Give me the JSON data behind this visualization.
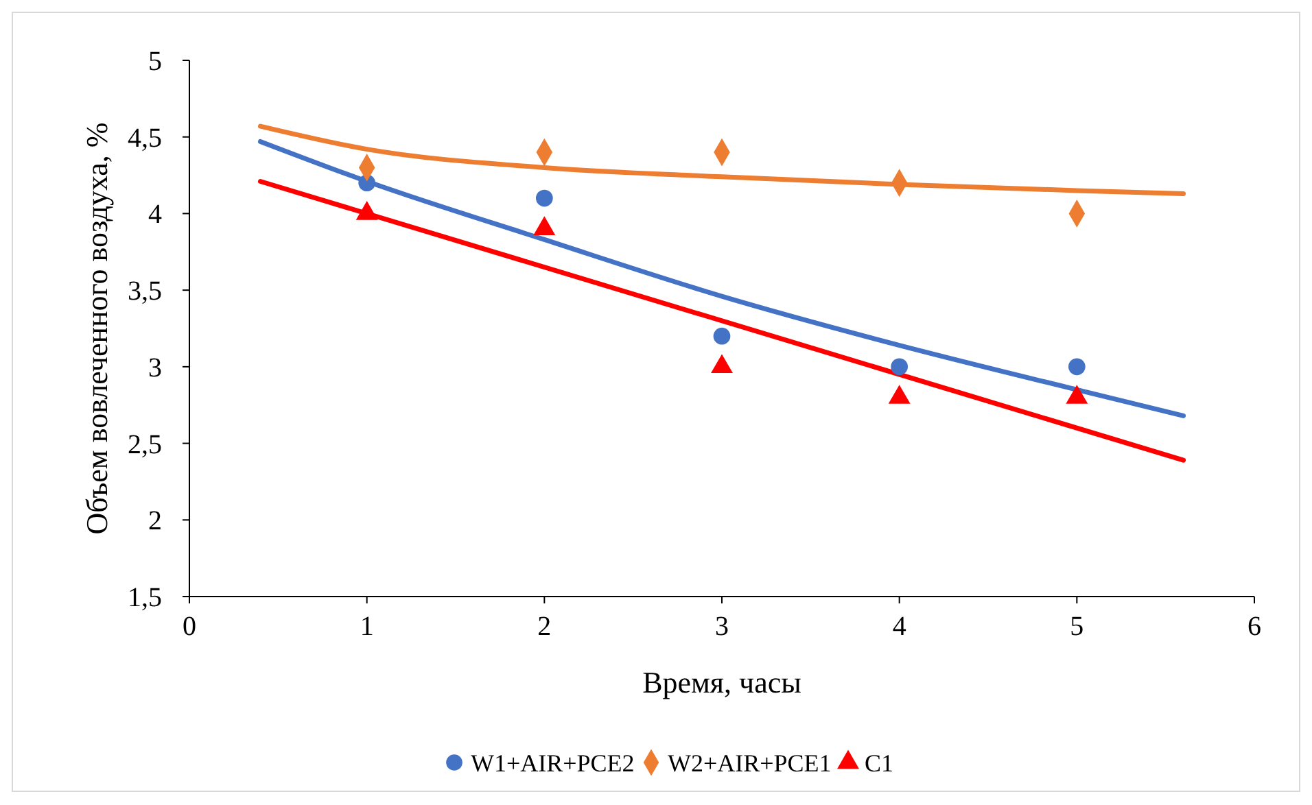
{
  "chart_data": {
    "type": "scatter",
    "xlabel": "Время, часы",
    "ylabel": "Объем вовлеченного  воздуха, %",
    "xlim": [
      0,
      6
    ],
    "xticks": [
      0,
      1,
      2,
      3,
      4,
      5,
      6
    ],
    "ylim": [
      1.5,
      5
    ],
    "yticks": [
      {
        "value": 1.5,
        "label": "1,5"
      },
      2,
      {
        "value": 2.5,
        "label": "2,5"
      },
      3,
      {
        "value": 3.5,
        "label": "3,5"
      },
      4,
      {
        "value": 4.5,
        "label": "4,5"
      },
      5
    ],
    "x": [
      1,
      2,
      3,
      4,
      5
    ],
    "grid": false,
    "legend": "bottom",
    "series": [
      {
        "name": "W1+AIR+PCE2",
        "color": "#4472c4",
        "marker": "circle",
        "values": [
          4.2,
          4.1,
          3.2,
          3.0,
          3.0
        ]
      },
      {
        "name": "W2+AIR+PCE1",
        "color": "#ed7d31",
        "marker": "diamond",
        "values": [
          4.3,
          4.4,
          4.4,
          4.2,
          4.0
        ]
      },
      {
        "name": "C1",
        "color": "#ff0000",
        "marker": "triangle",
        "values": [
          4.0,
          3.9,
          3.0,
          2.8,
          2.8
        ]
      },
      {
        "type": "line",
        "color": "#4472c4",
        "marker": "none",
        "x": [
          0.4,
          1,
          2,
          3,
          4,
          5,
          5.6
        ],
        "values": [
          4.47,
          4.21,
          3.83,
          3.46,
          3.14,
          2.85,
          2.68
        ]
      },
      {
        "type": "line",
        "color": "#ed7d31",
        "marker": "none",
        "x": [
          0.4,
          1,
          2,
          3,
          4,
          5,
          5.6
        ],
        "values": [
          4.57,
          4.42,
          4.3,
          4.24,
          4.19,
          4.15,
          4.13
        ]
      },
      {
        "type": "line",
        "color": "#ff0000",
        "marker": "none",
        "x": [
          0.4,
          5.6
        ],
        "values": [
          4.21,
          2.39
        ]
      }
    ]
  }
}
